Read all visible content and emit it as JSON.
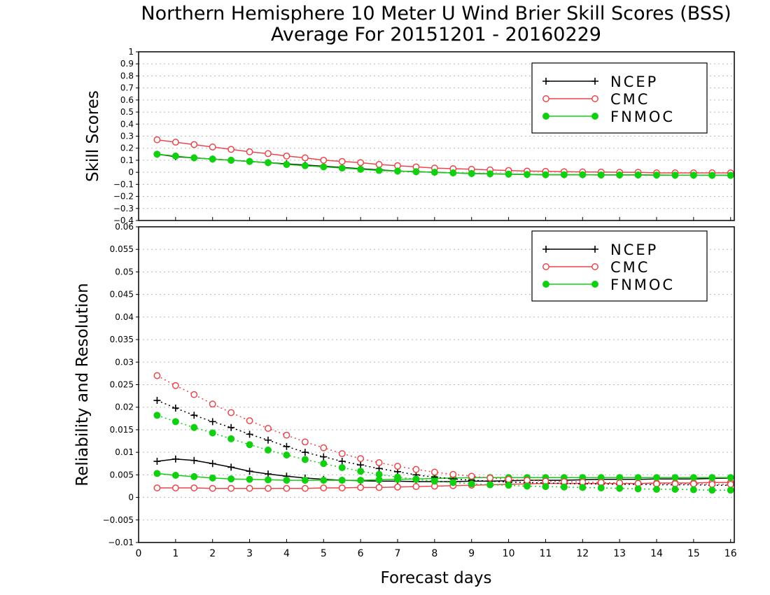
{
  "chart_data": {
    "type": "line",
    "title": "Northern Hemisphere 10 Meter U Wind Brier Skill Scores (BSS)",
    "subtitle": "Average For 20151201 - 20160229",
    "xlabel": "Forecast days",
    "xlim": [
      0,
      16.1
    ],
    "x_ticks": [
      "0",
      "1",
      "2",
      "3",
      "4",
      "5",
      "6",
      "7",
      "8",
      "9",
      "10",
      "11",
      "12",
      "13",
      "14",
      "15",
      "16"
    ],
    "x": [
      0.5,
      1,
      1.5,
      2,
      2.5,
      3,
      3.5,
      4,
      4.5,
      5,
      5.5,
      6,
      6.5,
      7,
      7.5,
      8,
      8.5,
      9,
      9.5,
      10,
      10.5,
      11,
      11.5,
      12,
      12.5,
      13,
      13.5,
      14,
      14.5,
      15,
      15.5,
      16
    ],
    "colors": {
      "NCEP": "#000000",
      "CMC": "#e8474c",
      "FNMOC": "#10d010"
    },
    "panels": [
      {
        "name": "skill",
        "ylabel": "Skill Scores",
        "ylim": [
          -0.4,
          1
        ],
        "y_ticks": [
          "−0.4",
          "−0.3",
          "−0.2",
          "−0.1",
          "0",
          "0.1",
          "0.2",
          "0.3",
          "0.4",
          "0.5",
          "0.6",
          "0.7",
          "0.8",
          "0.9",
          "1"
        ],
        "grid": true,
        "legend": "top-right",
        "series": [
          {
            "name": "NCEP",
            "marker": "plus",
            "line": "solid",
            "values": [
              0.15,
              0.13,
              0.12,
              0.11,
              0.1,
              0.09,
              0.08,
              0.07,
              0.06,
              0.05,
              0.04,
              0.03,
              0.02,
              0.01,
              0.005,
              0.0,
              -0.005,
              -0.01,
              -0.012,
              -0.015,
              -0.018,
              -0.02,
              -0.02,
              -0.02,
              -0.022,
              -0.022,
              -0.022,
              -0.023,
              -0.024,
              -0.024,
              -0.025,
              -0.025
            ]
          },
          {
            "name": "CMC",
            "marker": "open-circle",
            "line": "solid",
            "values": [
              0.27,
              0.25,
              0.23,
              0.21,
              0.19,
              0.17,
              0.155,
              0.135,
              0.12,
              0.1,
              0.09,
              0.08,
              0.065,
              0.055,
              0.045,
              0.035,
              0.03,
              0.025,
              0.02,
              0.015,
              0.01,
              0.008,
              0.005,
              0.003,
              0.002,
              0.0,
              0.0,
              -0.005,
              -0.005,
              -0.005,
              -0.005,
              -0.005
            ]
          },
          {
            "name": "FNMOC",
            "marker": "filled-circle",
            "line": "solid",
            "values": [
              0.15,
              0.135,
              0.12,
              0.11,
              0.1,
              0.09,
              0.08,
              0.065,
              0.055,
              0.045,
              0.035,
              0.025,
              0.015,
              0.01,
              0.005,
              0.0,
              -0.005,
              -0.01,
              -0.012,
              -0.015,
              -0.018,
              -0.02,
              -0.02,
              -0.02,
              -0.022,
              -0.022,
              -0.022,
              -0.023,
              -0.024,
              -0.024,
              -0.025,
              -0.025
            ]
          }
        ]
      },
      {
        "name": "reliability-resolution",
        "ylabel": "Reliability and Resolution",
        "ylim": [
          -0.01,
          0.06
        ],
        "y_ticks": [
          "−0.01",
          "−0.005",
          "0",
          "0.005",
          "0.01",
          "0.015",
          "0.02",
          "0.025",
          "0.03",
          "0.035",
          "0.04",
          "0.045",
          "0.05",
          "0.055",
          "0.06"
        ],
        "grid": true,
        "legend": "top-right",
        "series": [
          {
            "name": "NCEP",
            "marker": "plus",
            "line": "solid",
            "values": [
              0.008,
              0.0085,
              0.0082,
              0.0075,
              0.0067,
              0.0058,
              0.0052,
              0.0047,
              0.0043,
              0.004,
              0.0038,
              0.0037,
              0.0036,
              0.0036,
              0.0035,
              0.0035,
              0.0035,
              0.0036,
              0.0036,
              0.0037,
              0.0038,
              0.0038,
              0.0038,
              0.0039,
              0.004,
              0.004,
              0.004,
              0.0041,
              0.0041,
              0.0041,
              0.0042,
              0.0043
            ]
          },
          {
            "name": "CMC",
            "marker": "open-circle",
            "line": "solid",
            "values": [
              0.0021,
              0.0021,
              0.0021,
              0.002,
              0.002,
              0.002,
              0.002,
              0.002,
              0.002,
              0.0021,
              0.0021,
              0.0022,
              0.0022,
              0.0023,
              0.0024,
              0.0025,
              0.0026,
              0.0027,
              0.0028,
              0.0029,
              0.003,
              0.0031,
              0.0031,
              0.0031,
              0.0031,
              0.0031,
              0.0031,
              0.0032,
              0.0032,
              0.0032,
              0.0033,
              0.0033
            ]
          },
          {
            "name": "FNMOC",
            "marker": "filled-circle",
            "line": "solid",
            "values": [
              0.0053,
              0.0049,
              0.0046,
              0.0043,
              0.0041,
              0.004,
              0.0039,
              0.0038,
              0.0038,
              0.0038,
              0.0038,
              0.0038,
              0.0039,
              0.004,
              0.0041,
              0.0042,
              0.0043,
              0.0044,
              0.0044,
              0.0044,
              0.0044,
              0.0044,
              0.0044,
              0.0044,
              0.0044,
              0.0044,
              0.0044,
              0.0044,
              0.0044,
              0.0044,
              0.0044,
              0.0044
            ]
          },
          {
            "name": "NCEP",
            "marker": "plus",
            "line": "dotted",
            "values": [
              0.0215,
              0.0198,
              0.0182,
              0.0168,
              0.0155,
              0.014,
              0.0127,
              0.0113,
              0.01,
              0.009,
              0.008,
              0.0072,
              0.0064,
              0.0057,
              0.005,
              0.0045,
              0.0041,
              0.0038,
              0.0036,
              0.0034,
              0.0033,
              0.0032,
              0.0031,
              0.003,
              0.003,
              0.0029,
              0.0029,
              0.0028,
              0.0028,
              0.0028,
              0.0027,
              0.0027
            ]
          },
          {
            "name": "CMC",
            "marker": "open-circle",
            "line": "dotted",
            "values": [
              0.027,
              0.0248,
              0.0228,
              0.0207,
              0.0188,
              0.017,
              0.0153,
              0.0138,
              0.0123,
              0.011,
              0.0097,
              0.0086,
              0.0077,
              0.0069,
              0.0062,
              0.0056,
              0.0051,
              0.0047,
              0.0043,
              0.004,
              0.0038,
              0.0036,
              0.0035,
              0.0034,
              0.0033,
              0.0032,
              0.0031,
              0.003,
              0.003,
              0.003,
              0.0029,
              0.0029
            ]
          },
          {
            "name": "FNMOC",
            "marker": "filled-circle",
            "line": "dotted",
            "values": [
              0.0182,
              0.0168,
              0.0155,
              0.0143,
              0.013,
              0.0117,
              0.0105,
              0.0094,
              0.0084,
              0.0075,
              0.0066,
              0.0058,
              0.0051,
              0.0045,
              0.004,
              0.0036,
              0.0033,
              0.003,
              0.0028,
              0.0027,
              0.0025,
              0.0024,
              0.0023,
              0.0022,
              0.0021,
              0.002,
              0.0019,
              0.0018,
              0.0018,
              0.0017,
              0.0016,
              0.0016
            ]
          }
        ]
      }
    ]
  }
}
